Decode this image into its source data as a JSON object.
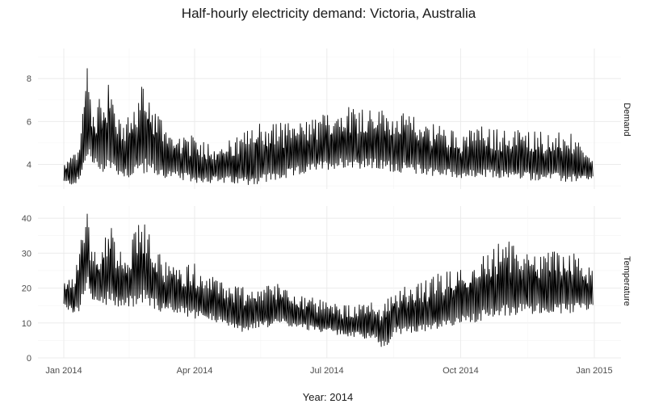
{
  "chart_data": {
    "type": "line",
    "title": "Half-hourly electricity demand: Victoria, Australia",
    "xlabel": "Year: 2014",
    "x_ticks": [
      "Jan 2014",
      "Apr 2014",
      "Jul 2014",
      "Oct 2014",
      "Jan 2015"
    ],
    "x_range": [
      "2014-01-01",
      "2015-01-01"
    ],
    "grid": true,
    "facets": [
      {
        "name": "Demand",
        "ylim": [
          2.85,
          9.4
        ],
        "y_ticks": [
          "4",
          "6",
          "8"
        ],
        "series_color": "#000000",
        "envelope": [
          {
            "date": "2014-01-01",
            "low": 3.1,
            "high": 4.1
          },
          {
            "date": "2014-01-08",
            "low": 3.0,
            "high": 4.5
          },
          {
            "date": "2014-01-12",
            "low": 3.2,
            "high": 4.8
          },
          {
            "date": "2014-01-15",
            "low": 3.6,
            "high": 7.8
          },
          {
            "date": "2014-01-17",
            "low": 4.2,
            "high": 9.3
          },
          {
            "date": "2014-01-21",
            "low": 3.8,
            "high": 6.6
          },
          {
            "date": "2014-01-29",
            "low": 3.5,
            "high": 7.4
          },
          {
            "date": "2014-02-01",
            "low": 3.6,
            "high": 8.2
          },
          {
            "date": "2014-02-08",
            "low": 3.4,
            "high": 6.1
          },
          {
            "date": "2014-02-15",
            "low": 3.3,
            "high": 6.3
          },
          {
            "date": "2014-02-24",
            "low": 3.5,
            "high": 7.8
          },
          {
            "date": "2014-03-08",
            "low": 3.3,
            "high": 6.4
          },
          {
            "date": "2014-03-15",
            "low": 3.3,
            "high": 5.6
          },
          {
            "date": "2014-04-01",
            "low": 3.1,
            "high": 5.3
          },
          {
            "date": "2014-04-15",
            "low": 3.1,
            "high": 5.0
          },
          {
            "date": "2014-05-01",
            "low": 3.0,
            "high": 5.3
          },
          {
            "date": "2014-05-15",
            "low": 3.0,
            "high": 6.0
          },
          {
            "date": "2014-06-01",
            "low": 3.2,
            "high": 6.0
          },
          {
            "date": "2014-06-15",
            "low": 3.5,
            "high": 6.0
          },
          {
            "date": "2014-07-01",
            "low": 3.7,
            "high": 6.4
          },
          {
            "date": "2014-07-15",
            "low": 3.8,
            "high": 6.8
          },
          {
            "date": "2014-08-01",
            "low": 3.7,
            "high": 6.7
          },
          {
            "date": "2014-08-15",
            "low": 3.6,
            "high": 6.5
          },
          {
            "date": "2014-09-01",
            "low": 3.5,
            "high": 6.2
          },
          {
            "date": "2014-09-15",
            "low": 3.4,
            "high": 5.9
          },
          {
            "date": "2014-10-01",
            "low": 3.3,
            "high": 5.5
          },
          {
            "date": "2014-10-15",
            "low": 3.3,
            "high": 5.8
          },
          {
            "date": "2014-11-01",
            "low": 3.3,
            "high": 5.6
          },
          {
            "date": "2014-11-15",
            "low": 3.2,
            "high": 5.7
          },
          {
            "date": "2014-12-01",
            "low": 3.2,
            "high": 5.5
          },
          {
            "date": "2014-12-15",
            "low": 3.1,
            "high": 5.5
          },
          {
            "date": "2014-12-31",
            "low": 3.3,
            "high": 4.2
          }
        ]
      },
      {
        "name": "Temperature",
        "ylim": [
          0,
          43.5
        ],
        "y_ticks": [
          "0",
          "10",
          "20",
          "30",
          "40"
        ],
        "series_color": "#000000",
        "envelope": [
          {
            "date": "2014-01-01",
            "low": 15,
            "high": 22
          },
          {
            "date": "2014-01-08",
            "low": 12,
            "high": 24
          },
          {
            "date": "2014-01-12",
            "low": 13,
            "high": 33
          },
          {
            "date": "2014-01-15",
            "low": 17,
            "high": 38
          },
          {
            "date": "2014-01-17",
            "low": 20,
            "high": 43
          },
          {
            "date": "2014-01-21",
            "low": 16,
            "high": 30
          },
          {
            "date": "2014-01-29",
            "low": 14,
            "high": 35
          },
          {
            "date": "2014-02-01",
            "low": 15,
            "high": 41
          },
          {
            "date": "2014-02-08",
            "low": 14,
            "high": 31
          },
          {
            "date": "2014-02-15",
            "low": 14,
            "high": 33
          },
          {
            "date": "2014-02-24",
            "low": 15,
            "high": 40
          },
          {
            "date": "2014-03-08",
            "low": 13,
            "high": 30
          },
          {
            "date": "2014-03-15",
            "low": 13,
            "high": 27
          },
          {
            "date": "2014-04-01",
            "low": 11,
            "high": 27
          },
          {
            "date": "2014-04-15",
            "low": 10,
            "high": 23
          },
          {
            "date": "2014-05-01",
            "low": 7,
            "high": 21
          },
          {
            "date": "2014-05-15",
            "low": 8,
            "high": 21
          },
          {
            "date": "2014-06-01",
            "low": 9,
            "high": 22
          },
          {
            "date": "2014-06-15",
            "low": 8,
            "high": 18
          },
          {
            "date": "2014-07-01",
            "low": 7,
            "high": 16
          },
          {
            "date": "2014-07-15",
            "low": 6,
            "high": 15
          },
          {
            "date": "2014-08-01",
            "low": 5,
            "high": 16
          },
          {
            "date": "2014-08-10",
            "low": 2,
            "high": 17
          },
          {
            "date": "2014-08-15",
            "low": 6,
            "high": 20
          },
          {
            "date": "2014-09-01",
            "low": 7,
            "high": 21
          },
          {
            "date": "2014-09-15",
            "low": 7,
            "high": 24
          },
          {
            "date": "2014-10-01",
            "low": 9,
            "high": 26
          },
          {
            "date": "2014-10-15",
            "low": 10,
            "high": 30
          },
          {
            "date": "2014-11-01",
            "low": 11,
            "high": 34
          },
          {
            "date": "2014-11-15",
            "low": 12,
            "high": 31
          },
          {
            "date": "2014-12-01",
            "low": 12,
            "high": 31
          },
          {
            "date": "2014-12-15",
            "low": 12,
            "high": 31
          },
          {
            "date": "2014-12-31",
            "low": 14,
            "high": 25
          }
        ]
      }
    ]
  }
}
